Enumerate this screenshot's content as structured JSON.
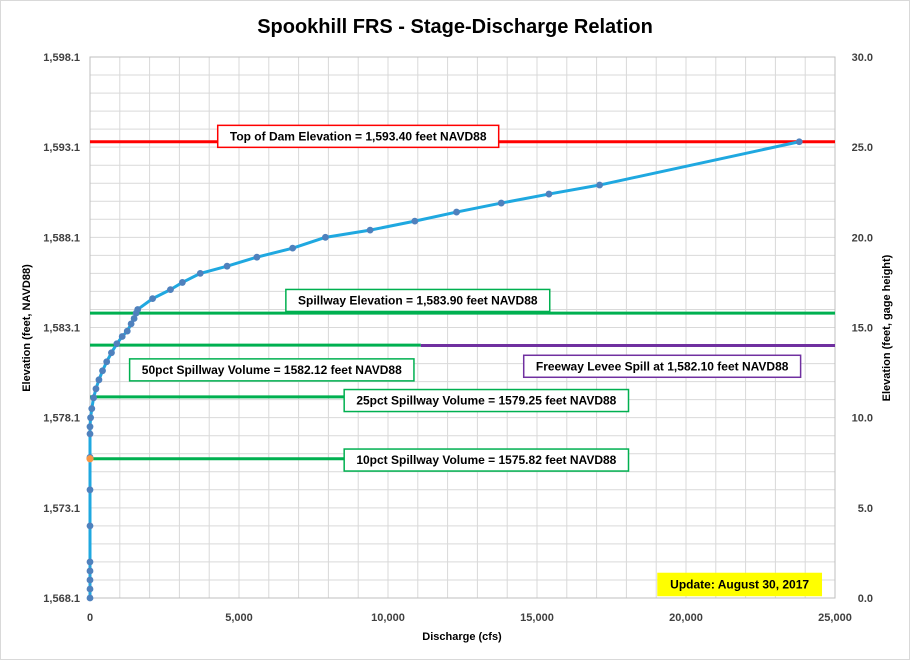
{
  "chart_data": {
    "type": "scatter",
    "title": "Spookhill FRS - Stage-Discharge Relation",
    "xlabel": "Discharge  (cfs)",
    "ylabel": "Elevation  (feet, NAVD88)",
    "y2label": "Elevation  (feet, gage height)",
    "xlim": [
      0,
      25000
    ],
    "ylim": [
      1568.1,
      1598.1
    ],
    "y2lim": [
      0.0,
      30.0
    ],
    "x_ticks": [
      "0",
      "5,000",
      "10,000",
      "15,000",
      "20,000",
      "25,000"
    ],
    "y_ticks": [
      "1,568.1",
      "1,573.1",
      "1,578.1",
      "1,583.1",
      "1,588.1",
      "1,593.1",
      "1,598.1"
    ],
    "y2_ticks": [
      "0.0",
      "5.0",
      "10.0",
      "15.0",
      "20.0",
      "25.0",
      "30.0"
    ],
    "grid": true,
    "series": [
      {
        "color": "#1fa8e0",
        "marker_color": "#4f81bd",
        "x": [
          0,
          0,
          0,
          0,
          0,
          0,
          0,
          0,
          0,
          0,
          20,
          60,
          120,
          200,
          300,
          420,
          560,
          720,
          900,
          1080,
          1250,
          1380,
          1480,
          1550,
          1600,
          2100,
          2700,
          3100,
          3700,
          4600,
          5600,
          6800,
          7900,
          9400,
          10900,
          12300,
          13800,
          15400,
          17100,
          23800
        ],
        "y": [
          1568.1,
          1568.6,
          1569.1,
          1569.6,
          1570.1,
          1572.1,
          1574.1,
          1575.9,
          1577.2,
          1577.6,
          1578.1,
          1578.6,
          1579.2,
          1579.7,
          1580.2,
          1580.7,
          1581.2,
          1581.7,
          1582.2,
          1582.6,
          1582.9,
          1583.3,
          1583.6,
          1583.9,
          1584.1,
          1584.7,
          1585.2,
          1585.6,
          1586.1,
          1586.5,
          1587.0,
          1587.5,
          1588.1,
          1588.5,
          1589.0,
          1589.5,
          1590.0,
          1590.5,
          1591.0,
          1593.4
        ]
      }
    ],
    "highlight_point": {
      "x": 0,
      "y": 1575.82,
      "color": "#f79646"
    },
    "reference_lines": [
      {
        "y": 1593.4,
        "color": "#ff0000",
        "x_end": 25000,
        "label": "Top of Dam Elevation = 1,593.40  feet NAVD88",
        "box_color": "#ff0000",
        "label_x": 9000,
        "label_y": 1593.7
      },
      {
        "y": 1583.9,
        "color": "#00b050",
        "x_end": 25000,
        "label": "Spillway Elevation = 1,583.90  feet NAVD88",
        "box_color": "#00b050",
        "label_x": 11000,
        "label_y": 1584.6
      },
      {
        "y": 1582.12,
        "color": "#00b050",
        "x_end": 11100,
        "label": "50pct Spillway Volume = 1582.12  feet NAVD88",
        "box_color": "#00b050",
        "label_x": 6100,
        "label_y": 1580.75
      },
      {
        "y": 1582.1,
        "color": "#7030a0",
        "x_start": 11100,
        "x_end": 25000,
        "label": "Freeway Levee Spill at 1,582.10  feet NAVD88",
        "box_color": "#7030a0",
        "label_x": 19200,
        "label_y": 1580.95
      },
      {
        "y": 1579.25,
        "color": "#00b050",
        "x_end": 9100,
        "label": "25pct Spillway Volume = 1579.25  feet NAVD88",
        "box_color": "#00b050",
        "label_x": 13300,
        "label_y": 1579.05
      },
      {
        "y": 1575.82,
        "color": "#00b050",
        "x_end": 9100,
        "label": "10pct Spillway Volume = 1575.82  feet NAVD88",
        "box_color": "#00b050",
        "label_x": 13300,
        "label_y": 1575.75
      }
    ],
    "update_note": {
      "text": "Update: August 30, 2017",
      "color": "#ffff00",
      "label_x": 21800,
      "label_y": 1568.85
    }
  }
}
